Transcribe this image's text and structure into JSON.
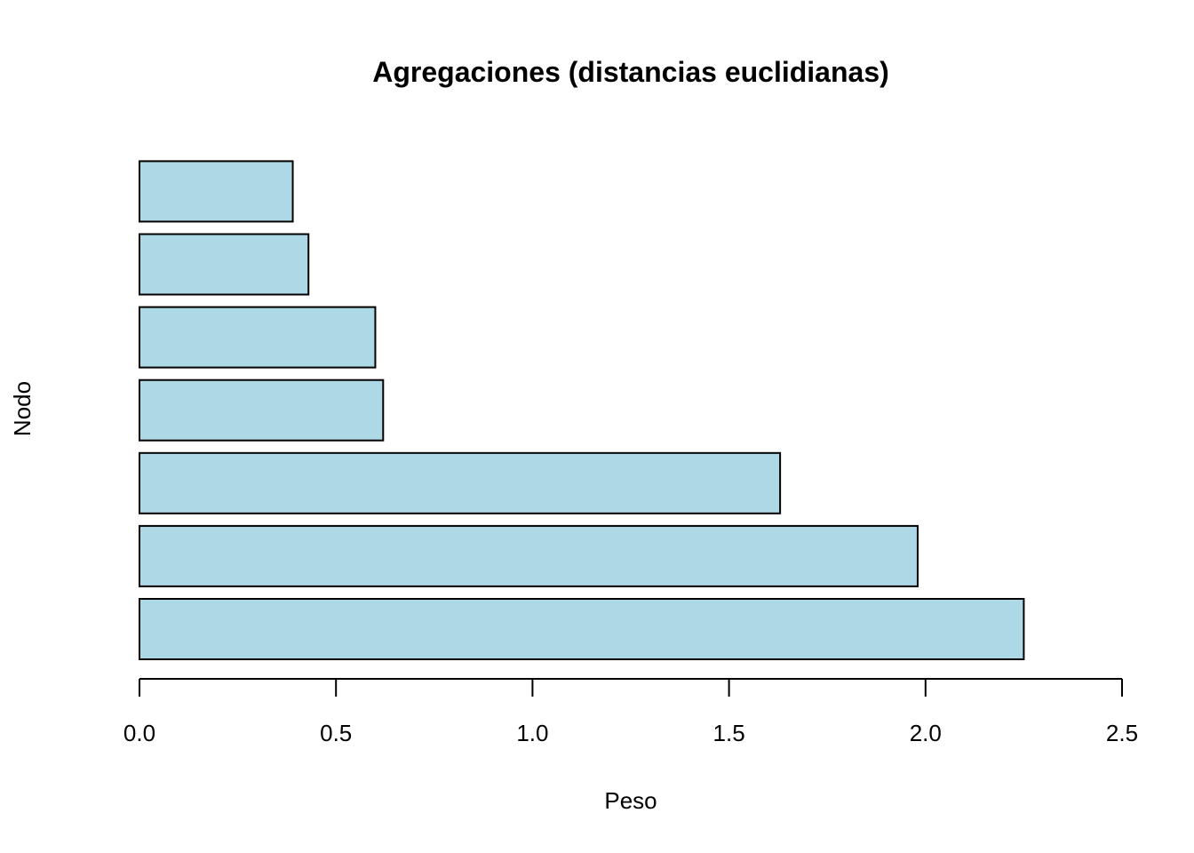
{
  "chart_data": {
    "type": "bar",
    "orientation": "horizontal",
    "title": "Agregaciones (distancias euclidianas)",
    "xlabel": "Peso",
    "ylabel": "Nodo",
    "values": [
      2.25,
      1.98,
      1.63,
      0.62,
      0.6,
      0.43,
      0.39
    ],
    "xlim": [
      0,
      2.5
    ],
    "xticks": [
      0,
      0.5,
      1,
      1.5,
      2,
      2.5
    ],
    "xtick_labels": [
      "0.0",
      "0.5",
      "1.0",
      "1.5",
      "2.0",
      "2.5"
    ],
    "bar_color": "#add8e6",
    "bar_edge_color": "#000000",
    "grid": false,
    "legend": "none"
  }
}
